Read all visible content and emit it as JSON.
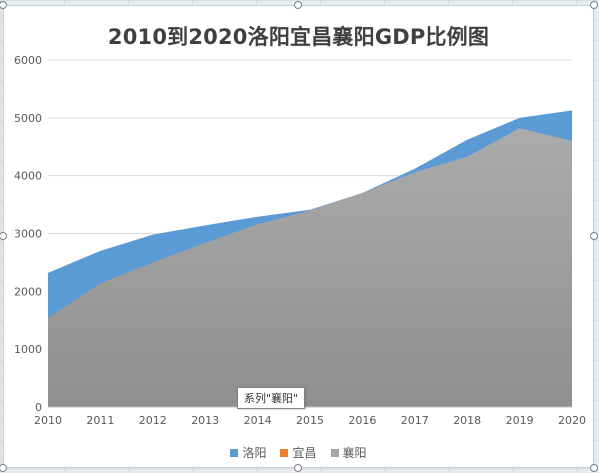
{
  "chart_data": {
    "type": "area",
    "title": "2010到2020洛阳宜昌襄阳GDP比例图",
    "categories": [
      "2010",
      "2011",
      "2012",
      "2013",
      "2014",
      "2015",
      "2016",
      "2017",
      "2018",
      "2019",
      "2020"
    ],
    "y_ticks": [
      0,
      1000,
      2000,
      3000,
      4000,
      5000,
      6000
    ],
    "ylim": [
      0,
      6000
    ],
    "grid": true,
    "legend_position": "bottom",
    "series": [
      {
        "name": "洛阳",
        "color": "#5b9bd5",
        "values": [
          2320,
          2700,
          2980,
          3140,
          3290,
          3410,
          3700,
          4120,
          4620,
          5000,
          5130
        ]
      },
      {
        "name": "宜昌",
        "color": "#ed7d31",
        "values": [
          0,
          0,
          0,
          0,
          0,
          0,
          0,
          0,
          0,
          0,
          0
        ]
      },
      {
        "name": "襄阳",
        "color": "#a5a5a5",
        "values": [
          1540,
          2140,
          2500,
          2840,
          3160,
          3400,
          3700,
          4060,
          4330,
          4820,
          4600
        ]
      }
    ],
    "tooltip": "系列\"襄阳\""
  }
}
